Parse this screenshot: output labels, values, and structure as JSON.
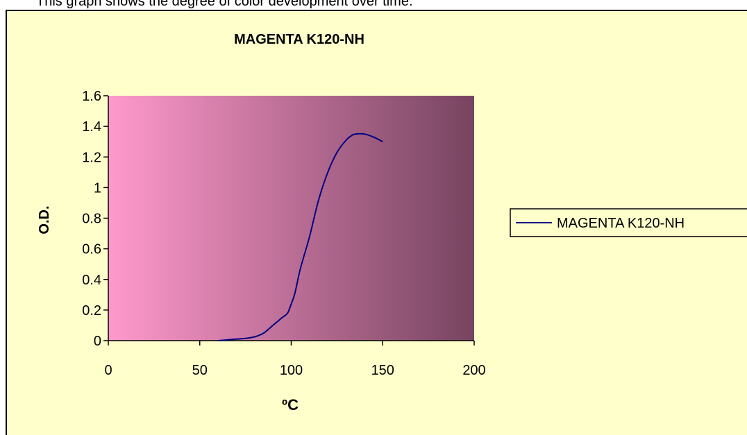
{
  "caption_fragment": "This graph shows the degree of color development over time.",
  "colors": {
    "chart_background": "#ffffcc",
    "plot_gradient_start": "#ff99cc",
    "plot_gradient_end": "#774460",
    "series_line": "#000080",
    "axis": "#000000"
  },
  "chart_data": {
    "type": "line",
    "title": "MAGENTA K120-NH",
    "xlabel": "ºC",
    "ylabel": "O.D.",
    "xlim": [
      0,
      200
    ],
    "ylim": [
      0,
      1.6
    ],
    "x_ticks": [
      "0",
      "50",
      "100",
      "150",
      "200"
    ],
    "y_ticks": [
      "0",
      "0.2",
      "0.4",
      "0.6",
      "0.8",
      "1",
      "1.2",
      "1.4",
      "1.6"
    ],
    "grid": false,
    "legend_position": "right",
    "series": [
      {
        "name": "MAGENTA K120-NH",
        "x": [
          60,
          65,
          70,
          75,
          80,
          85,
          90,
          95,
          98,
          100,
          102,
          105,
          110,
          115,
          120,
          125,
          130,
          133,
          135,
          140,
          145,
          150
        ],
        "y": [
          0,
          0.005,
          0.01,
          0.015,
          0.025,
          0.05,
          0.1,
          0.15,
          0.18,
          0.24,
          0.31,
          0.47,
          0.68,
          0.92,
          1.1,
          1.23,
          1.31,
          1.34,
          1.35,
          1.35,
          1.33,
          1.3
        ]
      }
    ]
  }
}
